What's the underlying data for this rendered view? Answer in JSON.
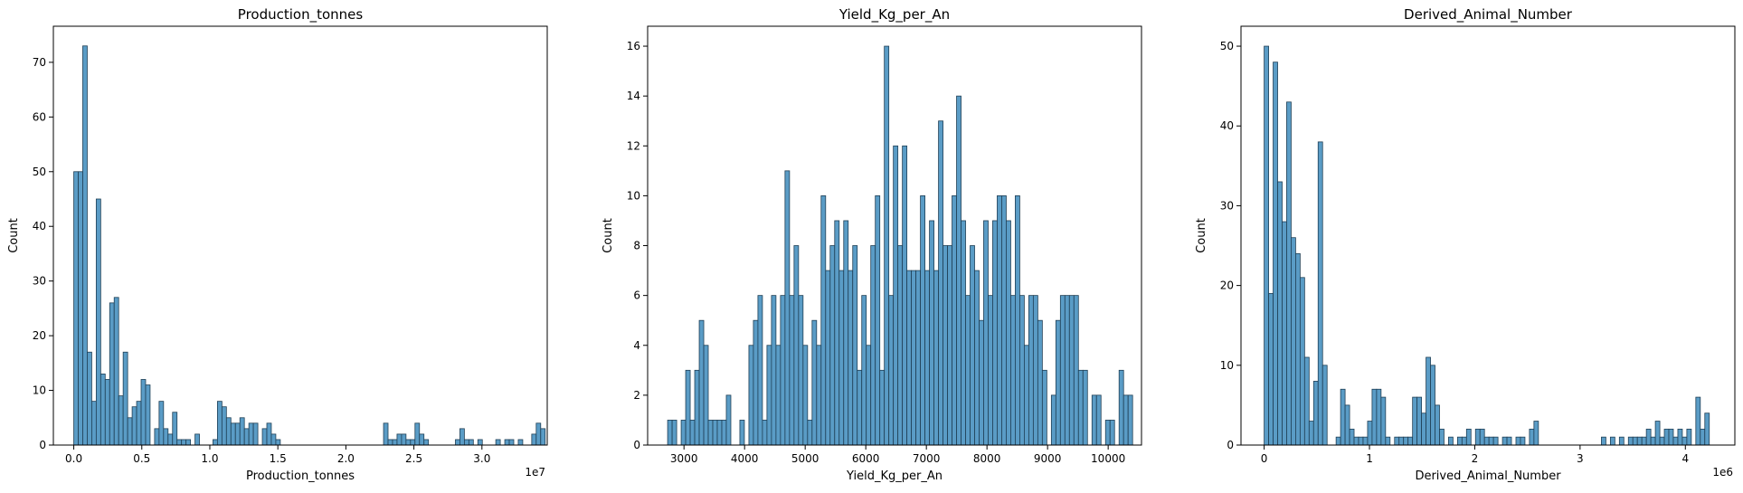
{
  "chart_data": [
    {
      "type": "bar",
      "title": "Production_tonnes",
      "xlabel": "Production_tonnes",
      "ylabel": "Count",
      "x_offset_label": "1e7",
      "x_unit_scale": 10000000,
      "xlim": [
        -0.15,
        3.48
      ],
      "ylim": [
        0,
        76.6
      ],
      "xticks": [
        0.0,
        0.5,
        1.0,
        1.5,
        2.0,
        2.5,
        3.0
      ],
      "xtick_labels": [
        "0.0",
        "0.5",
        "1.0",
        "1.5",
        "2.0",
        "2.5",
        "3.0"
      ],
      "yticks": [
        0,
        10,
        20,
        30,
        40,
        50,
        60,
        70
      ],
      "ytick_labels": [
        "0",
        "10",
        "20",
        "30",
        "40",
        "50",
        "60",
        "70"
      ],
      "bin_start": 0.0,
      "bin_width": 0.033,
      "values": [
        50,
        50,
        73,
        17,
        8,
        45,
        13,
        12,
        26,
        27,
        9,
        17,
        5,
        7,
        8,
        12,
        11,
        0,
        3,
        8,
        3,
        2,
        6,
        1,
        1,
        1,
        0,
        2,
        0,
        0,
        0,
        1,
        8,
        7,
        5,
        4,
        4,
        5,
        3,
        4,
        4,
        0,
        3,
        4,
        2,
        1,
        0,
        0,
        0,
        0,
        0,
        0,
        0,
        0,
        0,
        0,
        0,
        0,
        0,
        0,
        0,
        0,
        0,
        0,
        0,
        0,
        0,
        0,
        0,
        4,
        1,
        1,
        2,
        2,
        1,
        1,
        4,
        2,
        1,
        0,
        0,
        0,
        0,
        0,
        0,
        1,
        3,
        1,
        1,
        0,
        1,
        0,
        0,
        0,
        1,
        0,
        1,
        1,
        0,
        1,
        0,
        0,
        2,
        4,
        3
      ]
    },
    {
      "type": "bar",
      "title": "Yield_Kg_per_An",
      "xlabel": "Yield_Kg_per_An",
      "ylabel": "Count",
      "xlim": [
        2400,
        10550
      ],
      "ylim": [
        0,
        16.8
      ],
      "xticks": [
        3000,
        4000,
        5000,
        6000,
        7000,
        8000,
        9000,
        10000
      ],
      "xtick_labels": [
        "3000",
        "4000",
        "5000",
        "6000",
        "7000",
        "8000",
        "9000",
        "10000"
      ],
      "yticks": [
        0,
        2,
        4,
        6,
        8,
        10,
        12,
        14,
        16
      ],
      "ytick_labels": [
        "0",
        "2",
        "4",
        "6",
        "8",
        "10",
        "12",
        "14",
        "16"
      ],
      "bin_start": 2730,
      "bin_width": 74.5,
      "values": [
        1,
        1,
        0,
        1,
        3,
        1,
        3,
        5,
        4,
        1,
        1,
        1,
        1,
        2,
        0,
        0,
        1,
        0,
        4,
        5,
        6,
        1,
        4,
        6,
        4,
        6,
        11,
        6,
        8,
        6,
        4,
        1,
        5,
        4,
        10,
        7,
        8,
        9,
        7,
        9,
        7,
        8,
        3,
        6,
        4,
        8,
        10,
        3,
        16,
        6,
        12,
        8,
        12,
        7,
        7,
        7,
        10,
        7,
        9,
        7,
        13,
        8,
        8,
        10,
        14,
        9,
        6,
        8,
        7,
        5,
        9,
        6,
        9,
        10,
        10,
        9,
        6,
        10,
        6,
        4,
        6,
        6,
        5,
        3,
        0,
        2,
        5,
        6,
        6,
        6,
        6,
        3,
        3,
        0,
        2,
        2,
        0,
        1,
        1,
        0,
        3,
        2,
        2
      ],
      "bin_edges_note": ""
    },
    {
      "type": "bar",
      "title": "Derived_Animal_Number",
      "xlabel": "Derived_Animal_Number",
      "ylabel": "Count",
      "x_offset_label": "1e6",
      "x_unit_scale": 1000000,
      "xlim": [
        -0.22,
        4.47
      ],
      "ylim": [
        0,
        52.5
      ],
      "xticks": [
        0,
        1,
        2,
        3,
        4
      ],
      "xtick_labels": [
        "0",
        "1",
        "2",
        "3",
        "4"
      ],
      "yticks": [
        0,
        10,
        20,
        30,
        40,
        50
      ],
      "ytick_labels": [
        "0",
        "10",
        "20",
        "30",
        "40",
        "50"
      ],
      "bin_start": 0.0,
      "bin_width": 0.0427,
      "values": [
        50,
        19,
        48,
        33,
        28,
        43,
        26,
        24,
        21,
        11,
        3,
        8,
        38,
        10,
        0,
        0,
        1,
        7,
        5,
        2,
        1,
        1,
        1,
        3,
        7,
        7,
        6,
        1,
        0,
        1,
        1,
        1,
        1,
        6,
        6,
        4,
        11,
        10,
        5,
        2,
        0,
        1,
        0,
        1,
        1,
        2,
        0,
        2,
        2,
        1,
        1,
        1,
        0,
        1,
        1,
        0,
        1,
        1,
        0,
        2,
        3,
        0,
        0,
        0,
        0,
        0,
        0,
        0,
        0,
        0,
        0,
        0,
        0,
        0,
        0,
        1,
        0,
        1,
        0,
        1,
        0,
        1,
        1,
        1,
        1,
        2,
        1,
        3,
        1,
        2,
        2,
        1,
        2,
        1,
        2,
        0,
        6,
        2,
        4
      ]
    }
  ]
}
